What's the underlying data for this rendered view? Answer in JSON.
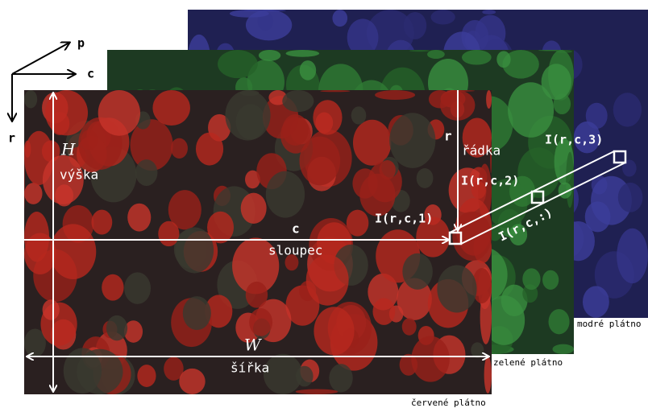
{
  "axes": {
    "p": "p",
    "c": "c",
    "r": "r"
  },
  "planes": {
    "blue": "modré plátno",
    "green": "zelené plátno",
    "red": "červené plátno"
  },
  "height": {
    "symbol": "H",
    "label": "výška"
  },
  "width": {
    "symbol": "W",
    "label": "šířka"
  },
  "column": {
    "symbol": "c",
    "label": "sloupec"
  },
  "row": {
    "symbol": "r",
    "label": "řádka"
  },
  "pixels": {
    "first": "I(r,c,1)",
    "second": "I(r,c,2)",
    "third": "I(r,c,3)",
    "all": "I(r,c,:)"
  }
}
